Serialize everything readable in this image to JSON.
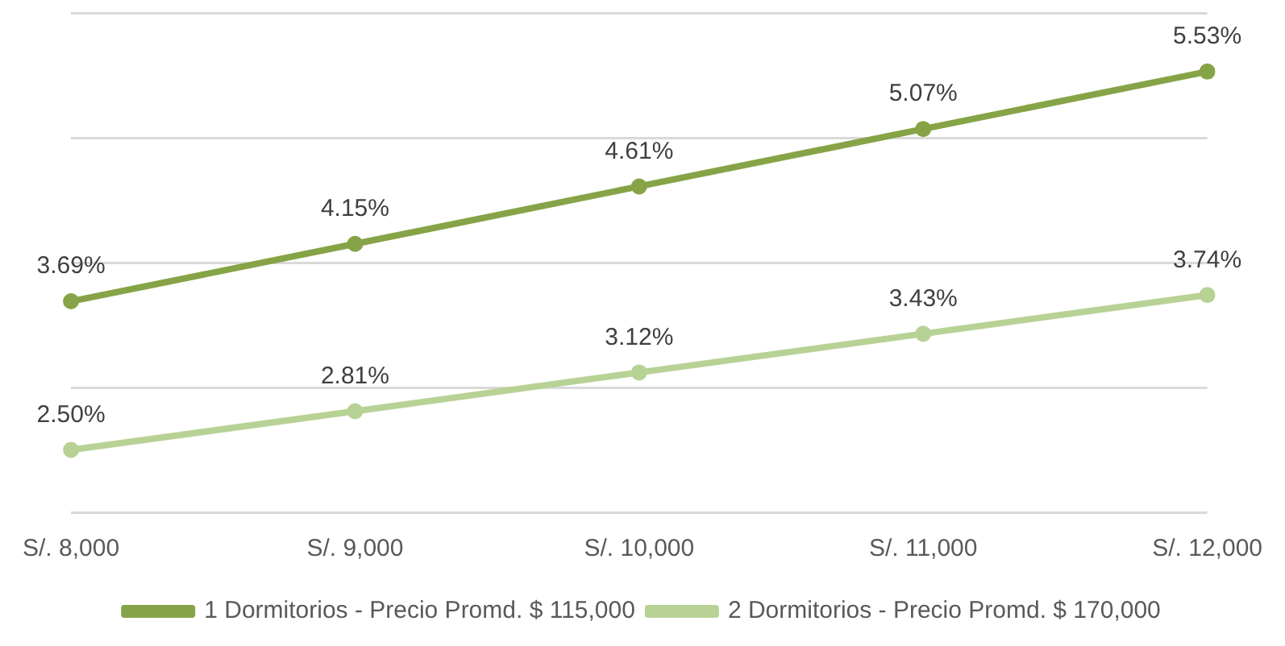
{
  "chart_data": {
    "type": "line",
    "categories": [
      "S/. 8,000",
      "S/. 9,000",
      "S/. 10,000",
      "S/. 11,000",
      "S/. 12,000"
    ],
    "series": [
      {
        "name": "1 Dormitorios - Precio Promd. $ 115,000",
        "color": "#86a447",
        "values": [
          3.69,
          4.15,
          4.61,
          5.07,
          5.53
        ],
        "value_labels": [
          "3.69%",
          "4.15%",
          "4.61%",
          "5.07%",
          "5.53%"
        ]
      },
      {
        "name": "2 Dormitorios - Precio Promd. $ 170,000",
        "color": "#b8d296",
        "values": [
          2.5,
          2.81,
          3.12,
          3.43,
          3.74
        ],
        "value_labels": [
          "2.50%",
          "2.81%",
          "3.12%",
          "3.43%",
          "3.74%"
        ]
      }
    ],
    "ylim": [
      2,
      6
    ],
    "yticks": [
      {
        "value": 2,
        "label": null
      },
      {
        "value": 3,
        "label": null
      },
      {
        "value": 4,
        "label": null
      },
      {
        "value": 5,
        "label": null
      },
      {
        "value": 6,
        "label": null
      }
    ],
    "grid": "y",
    "tick_labels": "x",
    "legend": "bottom",
    "marker": "circle",
    "line_style": "solid"
  }
}
